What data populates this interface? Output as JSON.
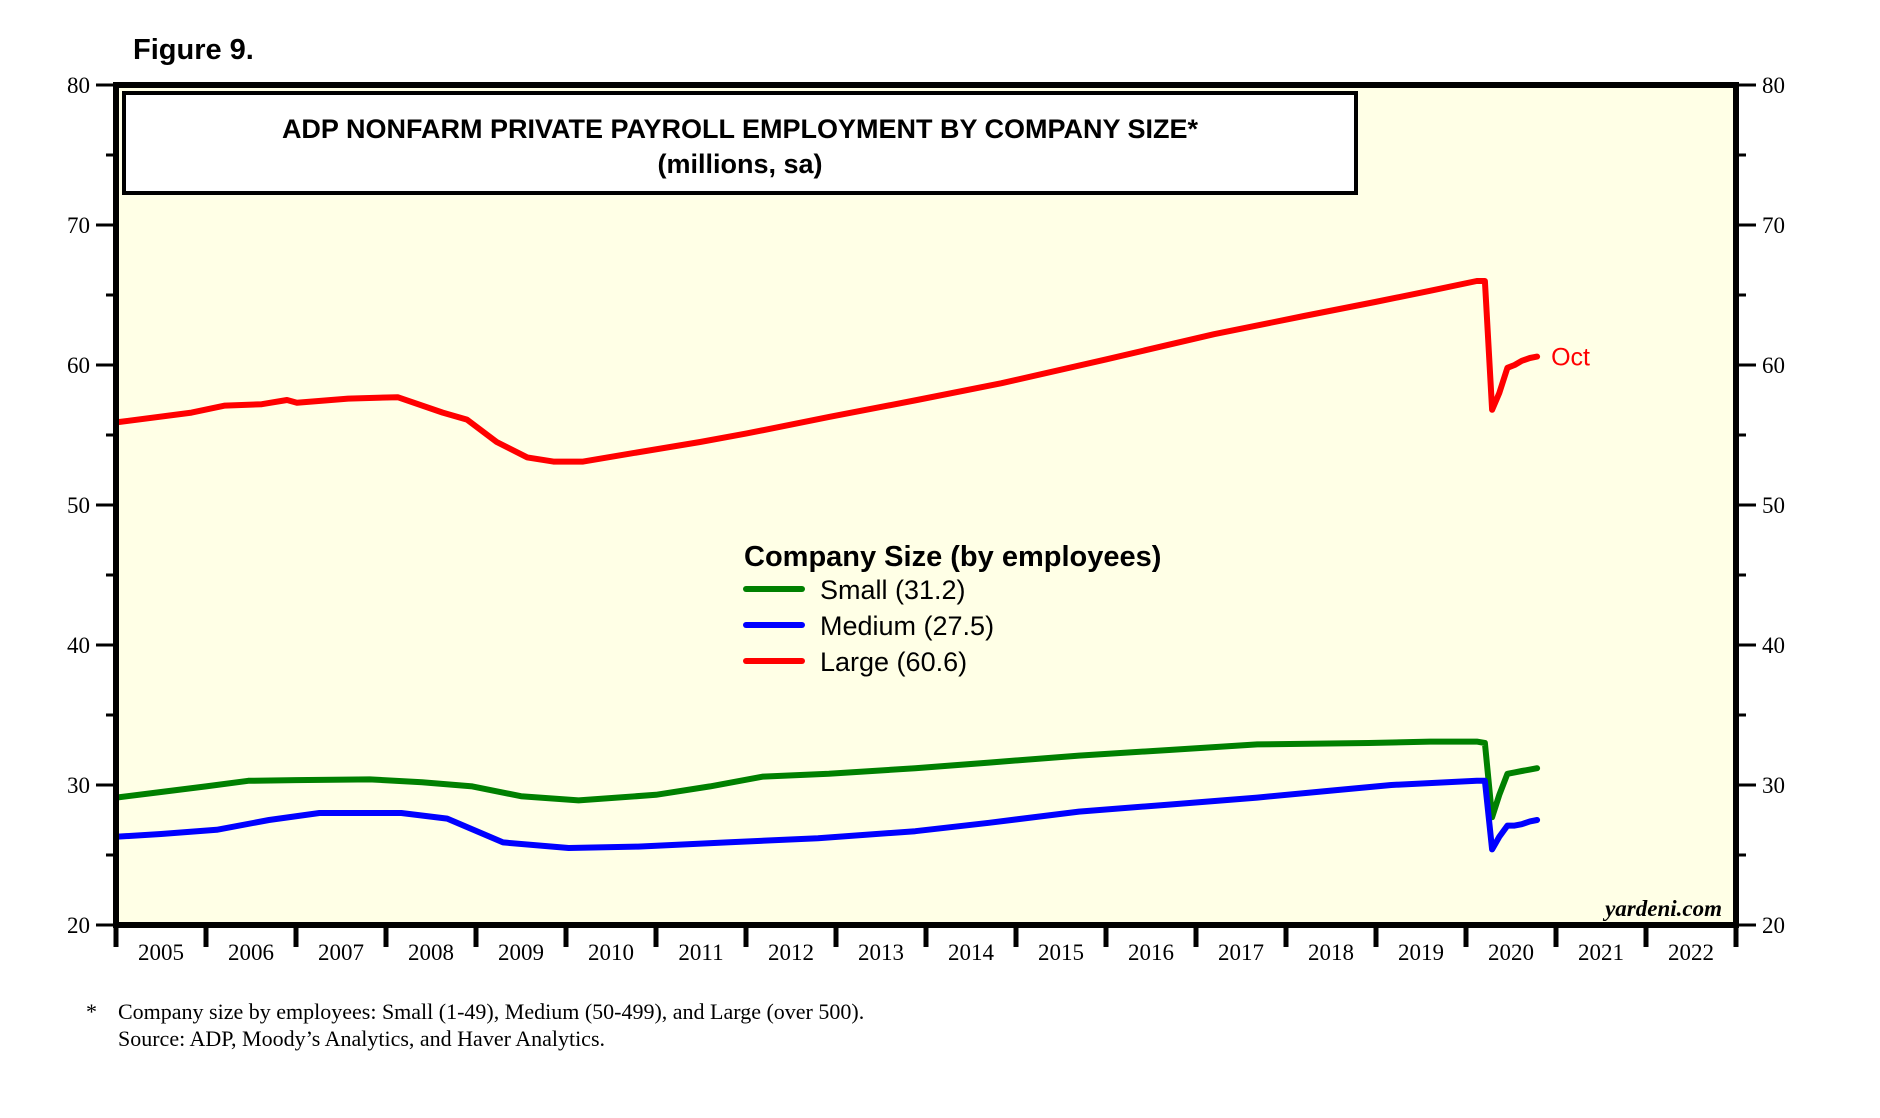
{
  "figure_label": "Figure 9.",
  "footnote": {
    "marker": "*",
    "line1": "Company size by employees: Small (1-49), Medium (50-499), and Large (over 500).",
    "line2": "Source: ADP, Moody’s Analytics, and Haver Analytics."
  },
  "watermark": "yardeni.com",
  "colors": {
    "plot_background": "#ffffe6",
    "small": "#008000",
    "medium": "#0000ff",
    "large": "#ff0000"
  },
  "chart_data": {
    "type": "line",
    "title": "ADP NONFARM PRIVATE PAYROLL EMPLOYMENT BY COMPANY SIZE*",
    "subtitle": "(millions, sa)",
    "xlabel": "",
    "ylabel": "",
    "xlim": [
      2005,
      2023
    ],
    "ylim": [
      20,
      80
    ],
    "y_ticks_major": [
      20,
      30,
      40,
      50,
      60,
      70,
      80
    ],
    "y_ticks_minor": [
      25,
      35,
      45,
      55,
      65,
      75
    ],
    "y_axis_sides": [
      "left",
      "right"
    ],
    "x_tick_labels": [
      "2005",
      "2006",
      "2007",
      "2008",
      "2009",
      "2010",
      "2011",
      "2012",
      "2013",
      "2014",
      "2015",
      "2016",
      "2017",
      "2018",
      "2019",
      "2020",
      "2021",
      "2022"
    ],
    "grid": false,
    "legend": {
      "title": "Company Size (by employees)",
      "placement": "center",
      "entries": [
        "Small (31.2)",
        "Medium (27.5)",
        "Large (60.6)"
      ]
    },
    "annotations": [
      {
        "text": "Oct",
        "series": "Large",
        "x": 2020.79,
        "y": 60.6
      }
    ],
    "series": [
      {
        "name": "Small",
        "latest": 31.2,
        "x": [
          2005.0,
          2005.5,
          2006.0,
          2006.47,
          2007.0,
          2007.82,
          2008.4,
          2008.96,
          2009.5,
          2010.14,
          2011.0,
          2011.6,
          2012.19,
          2012.92,
          2013.88,
          2014.7,
          2015.7,
          2016.7,
          2017.68,
          2018.92,
          2019.6,
          2020.12,
          2020.21,
          2020.29,
          2020.37,
          2020.46,
          2020.54,
          2020.62,
          2020.71,
          2020.79
        ],
        "values": [
          29.1,
          29.5,
          29.9,
          30.3,
          30.35,
          30.4,
          30.2,
          29.9,
          29.2,
          28.9,
          29.3,
          29.9,
          30.6,
          30.8,
          31.2,
          31.6,
          32.1,
          32.5,
          32.9,
          33.0,
          33.1,
          33.1,
          33.0,
          27.7,
          29.3,
          30.8,
          30.9,
          31.0,
          31.1,
          31.2
        ]
      },
      {
        "name": "Medium",
        "latest": 27.5,
        "x": [
          2005.0,
          2005.5,
          2006.12,
          2006.7,
          2007.26,
          2008.17,
          2008.68,
          2009.3,
          2010.03,
          2010.8,
          2011.79,
          2012.8,
          2013.88,
          2014.7,
          2015.7,
          2016.7,
          2017.68,
          2018.5,
          2019.17,
          2020.12,
          2020.21,
          2020.29,
          2020.37,
          2020.46,
          2020.54,
          2020.62,
          2020.71,
          2020.79
        ],
        "values": [
          26.3,
          26.5,
          26.8,
          27.5,
          28.0,
          28.0,
          27.6,
          25.9,
          25.5,
          25.6,
          25.9,
          26.2,
          26.7,
          27.3,
          28.1,
          28.6,
          29.1,
          29.6,
          30.0,
          30.3,
          30.3,
          25.4,
          26.3,
          27.1,
          27.1,
          27.2,
          27.4,
          27.5
        ]
      },
      {
        "name": "Large",
        "latest": 60.6,
        "x": [
          2005.0,
          2005.84,
          2006.21,
          2006.62,
          2006.9,
          2007.01,
          2007.58,
          2008.13,
          2008.63,
          2008.9,
          2009.23,
          2009.57,
          2009.86,
          2010.19,
          2010.74,
          2011.49,
          2012.0,
          2012.93,
          2013.9,
          2014.84,
          2016.0,
          2017.2,
          2018.2,
          2018.99,
          2019.6,
          2020.12,
          2020.21,
          2020.29,
          2020.37,
          2020.46,
          2020.54,
          2020.62,
          2020.71,
          2020.79
        ],
        "values": [
          55.9,
          56.6,
          57.1,
          57.2,
          57.5,
          57.3,
          57.6,
          57.7,
          56.6,
          56.1,
          54.5,
          53.4,
          53.1,
          53.1,
          53.7,
          54.5,
          55.1,
          56.3,
          57.5,
          58.7,
          60.4,
          62.2,
          63.5,
          64.5,
          65.3,
          66.0,
          66.0,
          56.8,
          58.0,
          59.8,
          60.0,
          60.3,
          60.5,
          60.6
        ]
      }
    ]
  }
}
